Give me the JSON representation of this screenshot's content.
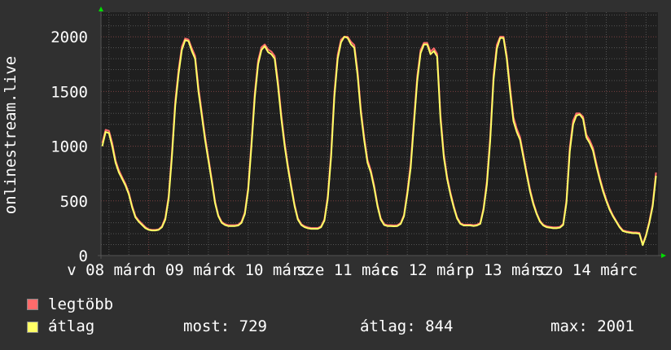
{
  "chart_data": {
    "type": "line",
    "ylabel": "onlinestream.live",
    "xlabel": "",
    "xlim": [
      "03-08 09:36",
      "03-15 09:36"
    ],
    "ylim": [
      0,
      2225
    ],
    "grid": true,
    "y_ticks": [
      0,
      500,
      1000,
      1500,
      2000
    ],
    "x_tick_labels": [
      {
        "at": "03-08 12:00",
        "label": "v 08 márc"
      },
      {
        "at": "03-09 12:00",
        "label": "h 09 márc"
      },
      {
        "at": "03-10 12:00",
        "label": "k 10 márc"
      },
      {
        "at": "03-11 12:00",
        "label": "sze 11 márc"
      },
      {
        "at": "03-12 12:00",
        "label": "cs 12 márc"
      },
      {
        "at": "03-13 12:00",
        "label": "p 13 márc"
      },
      {
        "at": "03-14 12:00",
        "label": "szo 14 márc"
      }
    ],
    "x_start": "03-08 10:00",
    "x_step_hours": 1,
    "series": [
      {
        "name": "legtöbb",
        "color": "#ff6b6b",
        "values": [
          1030,
          1150,
          1140,
          1030,
          870,
          780,
          715,
          655,
          575,
          455,
          360,
          320,
          290,
          260,
          240,
          235,
          235,
          240,
          268,
          345,
          545,
          940,
          1410,
          1700,
          1910,
          1985,
          1975,
          1895,
          1825,
          1540,
          1310,
          1090,
          895,
          700,
          495,
          370,
          308,
          288,
          278,
          278,
          278,
          283,
          310,
          395,
          625,
          1040,
          1490,
          1785,
          1905,
          1930,
          1885,
          1865,
          1825,
          1590,
          1285,
          1030,
          825,
          640,
          465,
          340,
          288,
          268,
          258,
          252,
          252,
          252,
          268,
          332,
          545,
          940,
          1490,
          1835,
          1975,
          2001,
          2001,
          1955,
          1925,
          1690,
          1335,
          1080,
          875,
          780,
          640,
          465,
          340,
          288,
          278,
          278,
          276,
          278,
          298,
          372,
          585,
          840,
          1240,
          1640,
          1880,
          1945,
          1945,
          1865,
          1895,
          1845,
          1290,
          930,
          720,
          578,
          455,
          350,
          298,
          283,
          283,
          283,
          278,
          283,
          300,
          435,
          680,
          1090,
          1650,
          1925,
          2001,
          2001,
          1830,
          1540,
          1265,
          1160,
          1085,
          925,
          760,
          608,
          485,
          390,
          318,
          283,
          268,
          263,
          258,
          258,
          263,
          290,
          505,
          990,
          1235,
          1300,
          1300,
          1270,
          1105,
          1055,
          985,
          845,
          720,
          608,
          515,
          433,
          370,
          318,
          268,
          232,
          222,
          217,
          212,
          212,
          208,
          105,
          190,
          315,
          470,
          760
        ]
      },
      {
        "name": "átlag",
        "color": "#ffff66",
        "values": [
          1000,
          1130,
          1120,
          1000,
          850,
          760,
          700,
          640,
          560,
          440,
          350,
          310,
          280,
          250,
          235,
          230,
          230,
          235,
          260,
          330,
          520,
          900,
          1370,
          1660,
          1880,
          1970,
          1960,
          1870,
          1800,
          1500,
          1280,
          1060,
          870,
          680,
          480,
          360,
          300,
          280,
          270,
          270,
          270,
          275,
          300,
          380,
          600,
          1000,
          1450,
          1750,
          1880,
          1915,
          1860,
          1840,
          1800,
          1550,
          1250,
          1000,
          800,
          620,
          450,
          330,
          280,
          260,
          250,
          245,
          245,
          245,
          260,
          320,
          520,
          900,
          1450,
          1800,
          1950,
          2000,
          1990,
          1930,
          1900,
          1650,
          1300,
          1050,
          850,
          760,
          620,
          450,
          330,
          280,
          270,
          270,
          268,
          270,
          290,
          360,
          560,
          800,
          1200,
          1600,
          1850,
          1930,
          1930,
          1840,
          1870,
          1820,
          1250,
          900,
          700,
          560,
          440,
          340,
          290,
          275,
          275,
          275,
          270,
          275,
          290,
          420,
          650,
          1050,
          1610,
          1890,
          1990,
          1990,
          1800,
          1500,
          1230,
          1130,
          1060,
          900,
          740,
          590,
          470,
          380,
          310,
          275,
          260,
          255,
          250,
          250,
          255,
          280,
          480,
          950,
          1200,
          1280,
          1290,
          1250,
          1080,
          1030,
          960,
          820,
          700,
          590,
          500,
          420,
          360,
          310,
          260,
          225,
          215,
          210,
          205,
          205,
          200,
          95,
          180,
          300,
          450,
          729
        ]
      }
    ]
  },
  "legend": {
    "items": [
      {
        "label": "legtöbb",
        "color": "#ff6b6b"
      },
      {
        "label": "átlag",
        "color": "#ffff66"
      }
    ],
    "stats": {
      "most": "most: 729",
      "atlag": "átlag: 844",
      "max": "max: 2001"
    }
  },
  "colors": {
    "background": "#303030",
    "plot": "#1f1f1f",
    "grid_minor": "#555555",
    "grid_major": "#7a4040",
    "arrow": "#00dd00"
  }
}
